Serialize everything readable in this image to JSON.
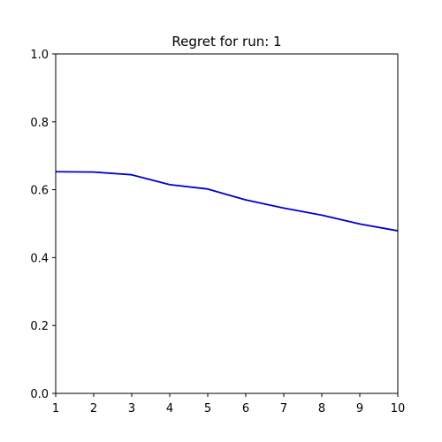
{
  "chart_data": {
    "type": "line",
    "title": "Regret for run: 1",
    "xlabel": "",
    "ylabel": "",
    "xlim": [
      1,
      10
    ],
    "ylim": [
      0.0,
      1.0
    ],
    "x_ticks": [
      "1",
      "2",
      "3",
      "4",
      "5",
      "6",
      "7",
      "8",
      "9",
      "10"
    ],
    "y_ticks": [
      "0.0",
      "0.2",
      "0.4",
      "0.6",
      "0.8",
      "1.0"
    ],
    "grid": false,
    "series": [
      {
        "color": "#0000cc",
        "x": [
          1,
          2,
          3,
          4,
          5,
          6,
          7,
          8,
          9,
          10
        ],
        "y": [
          0.653,
          0.652,
          0.644,
          0.615,
          0.602,
          0.57,
          0.546,
          0.525,
          0.499,
          0.479
        ]
      }
    ]
  }
}
